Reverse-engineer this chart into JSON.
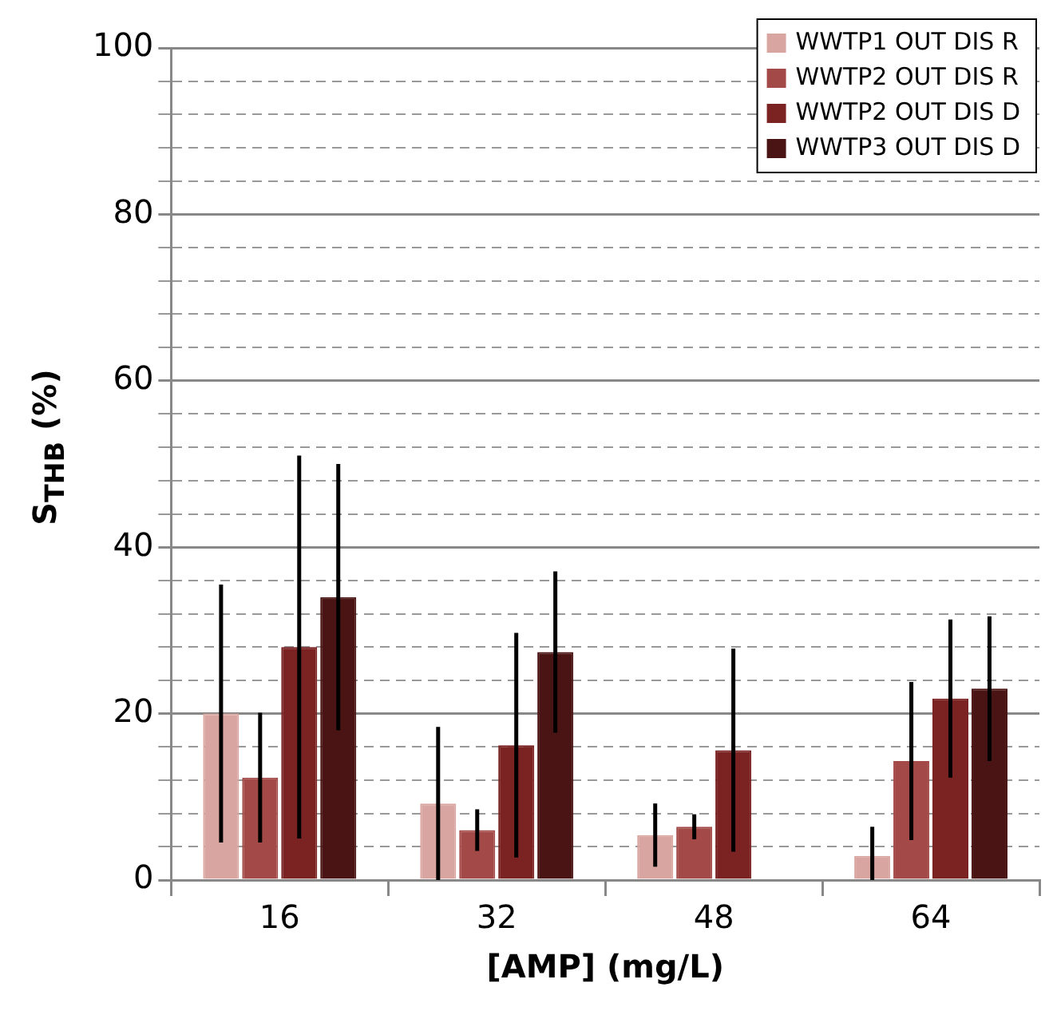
{
  "chart_data": {
    "type": "bar",
    "xlabel": "[AMP] (mg/L)",
    "ylabel": "S$_{THB}$ (%)",
    "categories": [
      "16",
      "32",
      "48",
      "64"
    ],
    "series": [
      {
        "name": "WWTP1 OUT DIS R",
        "color": "#d9a5a0",
        "values": [
          20,
          9.2,
          5.4,
          2.9
        ],
        "errors": [
          15.5,
          9.2,
          3.8,
          [
            0,
            6.4
          ]
        ]
      },
      {
        "name": "WWTP2 OUT DIS R",
        "color": "#a34a48",
        "values": [
          12.3,
          6,
          6.4,
          14.3
        ],
        "errors": [
          7.8,
          2.5,
          1.5,
          9.5
        ]
      },
      {
        "name": "WWTP2 OUT DIS D",
        "color": "#7b2323",
        "values": [
          28,
          16.2,
          15.6,
          21.8
        ],
        "errors": [
          23,
          13.5,
          12.2,
          9.5
        ]
      },
      {
        "name": "WWTP3 OUT DIS D",
        "color": "#4b1414",
        "values": [
          34,
          27.4,
          null,
          23
        ],
        "errors": [
          16,
          9.7,
          null,
          8.7
        ]
      }
    ],
    "ylim": [
      0,
      100
    ],
    "yticks": [
      0,
      {
        "value": 4,
        "label": null
      },
      {
        "value": 8,
        "label": null
      },
      {
        "value": 12,
        "label": null
      },
      {
        "value": 16,
        "label": null
      },
      20,
      {
        "value": 24,
        "label": null
      },
      {
        "value": 28,
        "label": null
      },
      {
        "value": 32,
        "label": null
      },
      {
        "value": 36,
        "label": null
      },
      40,
      {
        "value": 44,
        "label": null
      },
      {
        "value": 48,
        "label": null
      },
      {
        "value": 52,
        "label": null
      },
      {
        "value": 56,
        "label": null
      },
      60,
      {
        "value": 64,
        "label": null
      },
      {
        "value": 68,
        "label": null
      },
      {
        "value": 72,
        "label": null
      },
      {
        "value": 76,
        "label": null
      },
      80,
      {
        "value": 84,
        "label": null
      },
      {
        "value": 88,
        "label": null
      },
      {
        "value": 92,
        "label": null
      },
      {
        "value": 96,
        "label": null
      },
      100
    ],
    "grid": "y",
    "legend": "top right"
  }
}
